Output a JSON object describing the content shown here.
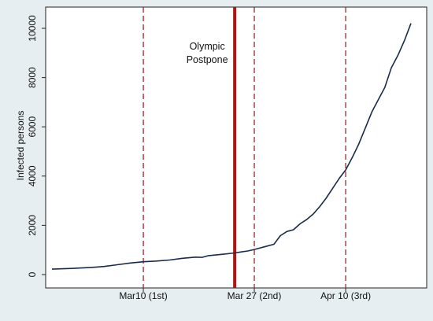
{
  "chart_data": {
    "type": "line",
    "title": "",
    "xlabel": "",
    "ylabel": "Infected persons",
    "x_start": "2020-02-25",
    "x_end": "2020-04-18",
    "ylim": [
      0,
      10500
    ],
    "y_ticks": [
      0,
      2000,
      4000,
      6000,
      8000,
      10000
    ],
    "x_tick_labels": [
      {
        "date": "2020-03-10",
        "label": "Mar10 (1st)"
      },
      {
        "date": "2020-03-27",
        "label": "Mar 27 (2nd)"
      },
      {
        "date": "2020-04-10",
        "label": "Apr 10 (3rd)"
      }
    ],
    "grid": false,
    "series": [
      {
        "color": "#1a2a4a",
        "points": [
          [
            "2020-02-25",
            220
          ],
          [
            "2020-02-28",
            250
          ],
          [
            "2020-03-02",
            290
          ],
          [
            "2020-03-04",
            330
          ],
          [
            "2020-03-06",
            400
          ],
          [
            "2020-03-08",
            470
          ],
          [
            "2020-03-10",
            520
          ],
          [
            "2020-03-12",
            550
          ],
          [
            "2020-03-14",
            590
          ],
          [
            "2020-03-16",
            660
          ],
          [
            "2020-03-18",
            710
          ],
          [
            "2020-03-19",
            700
          ],
          [
            "2020-03-20",
            770
          ],
          [
            "2020-03-22",
            820
          ],
          [
            "2020-03-24",
            880
          ],
          [
            "2020-03-25",
            920
          ],
          [
            "2020-03-26",
            960
          ],
          [
            "2020-03-27",
            1020
          ],
          [
            "2020-03-29",
            1160
          ],
          [
            "2020-03-30",
            1230
          ],
          [
            "2020-03-31",
            1580
          ],
          [
            "2020-04-01",
            1750
          ],
          [
            "2020-04-02",
            1820
          ],
          [
            "2020-04-03",
            2060
          ],
          [
            "2020-04-04",
            2230
          ],
          [
            "2020-04-05",
            2450
          ],
          [
            "2020-04-06",
            2750
          ],
          [
            "2020-04-07",
            3100
          ],
          [
            "2020-04-08",
            3500
          ],
          [
            "2020-04-09",
            3900
          ],
          [
            "2020-04-10",
            4250
          ],
          [
            "2020-04-11",
            4750
          ],
          [
            "2020-04-12",
            5300
          ],
          [
            "2020-04-13",
            5950
          ],
          [
            "2020-04-14",
            6600
          ],
          [
            "2020-04-15",
            7100
          ],
          [
            "2020-04-16",
            7600
          ],
          [
            "2020-04-17",
            8400
          ],
          [
            "2020-04-18",
            8900
          ],
          [
            "2020-04-19",
            9500
          ],
          [
            "2020-04-20",
            10200
          ]
        ]
      }
    ],
    "reference_lines": [
      {
        "date": "2020-03-10",
        "style": "dashed",
        "color": "#9a2a2a"
      },
      {
        "date": "2020-03-24",
        "style": "solid",
        "color": "#b01515"
      },
      {
        "date": "2020-03-27",
        "style": "dashed",
        "color": "#9a2a2a"
      },
      {
        "date": "2020-04-10",
        "style": "dashed",
        "color": "#9a2a2a"
      }
    ],
    "annotations": [
      {
        "date": "2020-03-24",
        "text_lines": [
          "Olympic",
          "Postpone"
        ]
      }
    ]
  }
}
